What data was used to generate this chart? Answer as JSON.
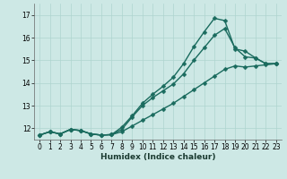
{
  "xlabel": "Humidex (Indice chaleur)",
  "bg_color": "#cde8e5",
  "line_color": "#1a6b5e",
  "xlim": [
    -0.5,
    23.5
  ],
  "ylim": [
    11.5,
    17.5
  ],
  "yticks": [
    12,
    13,
    14,
    15,
    16,
    17
  ],
  "xticks": [
    0,
    1,
    2,
    3,
    4,
    5,
    6,
    7,
    8,
    9,
    10,
    11,
    12,
    13,
    14,
    15,
    16,
    17,
    18,
    19,
    20,
    21,
    22,
    23
  ],
  "series1_x": [
    0,
    1,
    2,
    3,
    4,
    5,
    6,
    7,
    8,
    9,
    10,
    11,
    12,
    13,
    14,
    15,
    16,
    17,
    18,
    19,
    20,
    21,
    22,
    23
  ],
  "series1_y": [
    11.7,
    11.85,
    11.75,
    11.95,
    11.9,
    11.75,
    11.7,
    11.72,
    11.85,
    12.1,
    12.35,
    12.6,
    12.85,
    13.1,
    13.4,
    13.7,
    14.0,
    14.3,
    14.6,
    14.75,
    14.7,
    14.75,
    14.8,
    14.85
  ],
  "series2_x": [
    0,
    1,
    2,
    3,
    4,
    5,
    6,
    7,
    8,
    9,
    10,
    11,
    12,
    13,
    14,
    15,
    16,
    17,
    18,
    19,
    20,
    21,
    22,
    23
  ],
  "series2_y": [
    11.7,
    11.85,
    11.75,
    11.95,
    11.9,
    11.75,
    11.7,
    11.72,
    11.95,
    12.5,
    13.0,
    13.35,
    13.65,
    13.95,
    14.4,
    15.0,
    15.55,
    16.1,
    16.4,
    15.55,
    15.15,
    15.1,
    14.85,
    14.85
  ],
  "series3_x": [
    0,
    1,
    2,
    3,
    4,
    5,
    6,
    7,
    8,
    9,
    10,
    11,
    12,
    13,
    14,
    15,
    16,
    17,
    18,
    19,
    20,
    21,
    22,
    23
  ],
  "series3_y": [
    11.7,
    11.85,
    11.75,
    11.95,
    11.9,
    11.75,
    11.7,
    11.72,
    12.05,
    12.55,
    13.1,
    13.5,
    13.85,
    14.25,
    14.85,
    15.6,
    16.25,
    16.85,
    16.75,
    15.5,
    15.4,
    15.1,
    14.85,
    14.85
  ],
  "grid_color": "#aed4cf",
  "marker": "D",
  "markersize": 2.5,
  "linewidth": 1.0,
  "tick_fontsize": 5.5,
  "xlabel_fontsize": 6.5
}
